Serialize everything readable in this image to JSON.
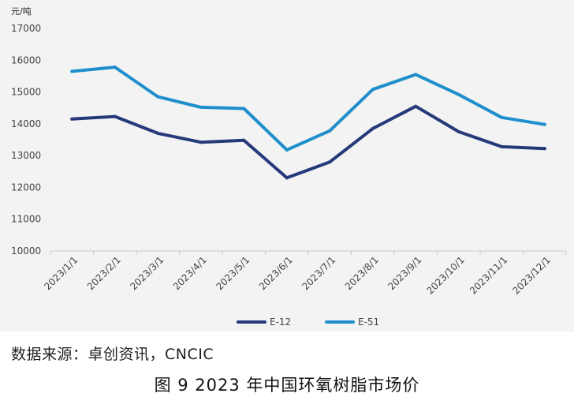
{
  "chart_data": {
    "type": "line",
    "y_unit": "元/吨",
    "categories": [
      "2023/1/1",
      "2023/2/1",
      "2023/3/1",
      "2023/4/1",
      "2023/5/1",
      "2023/6/1",
      "2023/7/1",
      "2023/8/1",
      "2023/9/1",
      "2023/10/1",
      "2023/11/1",
      "2023/12/1"
    ],
    "y_ticks": [
      10000,
      11000,
      12000,
      13000,
      14000,
      15000,
      16000,
      17000
    ],
    "ylim": [
      10000,
      17000
    ],
    "grid": false,
    "legend_position": "bottom",
    "series": [
      {
        "name": "E-12",
        "color": "#26397a",
        "values": [
          14150,
          14230,
          13700,
          13420,
          13480,
          12300,
          12800,
          13850,
          14550,
          13750,
          13280,
          13220
        ]
      },
      {
        "name": "E-51",
        "color": "#1f8fcb",
        "values": [
          15650,
          15780,
          14850,
          14520,
          14480,
          13180,
          13780,
          15080,
          15550,
          14920,
          14200,
          13980
        ]
      }
    ]
  },
  "source_note": "数据来源：卓创资讯，CNCIC",
  "caption": "图 9  2023 年中国环氧树脂市场价"
}
